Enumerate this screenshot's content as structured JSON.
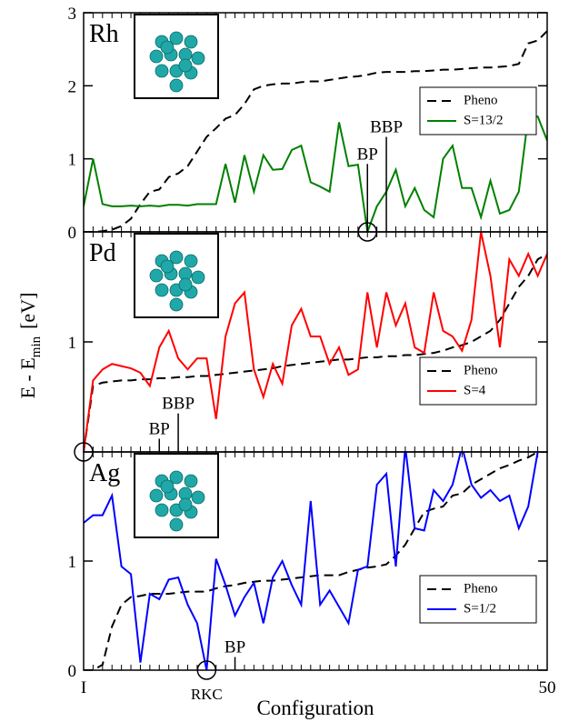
{
  "xlabel": "Configuration",
  "ylabel": {
    "main": "E - E",
    "sub": "min",
    "unit": "[eV]"
  },
  "x": [
    1,
    2,
    3,
    4,
    5,
    6,
    7,
    8,
    9,
    10,
    11,
    12,
    13,
    14,
    15,
    16,
    17,
    18,
    19,
    20,
    21,
    22,
    23,
    24,
    25,
    26,
    27,
    28,
    29,
    30,
    31,
    32,
    33,
    34,
    35,
    36,
    37,
    38,
    39,
    40,
    41,
    42,
    43,
    44,
    45,
    46,
    47,
    48,
    49,
    50
  ],
  "xlim": [
    1,
    50
  ],
  "xticks": [
    {
      "value": 1,
      "label": "I"
    },
    50
  ],
  "chart_data": [
    {
      "type": "line",
      "title": "Rh",
      "ylim": [
        0,
        3
      ],
      "yticks": [
        0,
        1,
        2,
        3
      ],
      "legend": "upper right",
      "series": [
        {
          "name": "Pheno",
          "color": "#000000",
          "linestyle": "dashed",
          "values": [
            0,
            0,
            0.01,
            0.03,
            0.08,
            0.18,
            0.38,
            0.55,
            0.58,
            0.75,
            0.8,
            0.9,
            1.1,
            1.3,
            1.42,
            1.55,
            1.6,
            1.75,
            1.95,
            2.0,
            2.02,
            2.03,
            2.03,
            2.05,
            2.06,
            2.06,
            2.08,
            2.1,
            2.12,
            2.13,
            2.15,
            2.18,
            2.19,
            2.19,
            2.19,
            2.2,
            2.2,
            2.21,
            2.22,
            2.22,
            2.23,
            2.24,
            2.25,
            2.25,
            2.26,
            2.27,
            2.3,
            2.58,
            2.62,
            2.75
          ]
        },
        {
          "name": "S=13/2",
          "color": "#008000",
          "linestyle": "solid",
          "values": [
            0.35,
            1.0,
            0.38,
            0.35,
            0.35,
            0.36,
            0.35,
            0.36,
            0.35,
            0.37,
            0.37,
            0.36,
            0.38,
            0.38,
            0.38,
            0.93,
            0.4,
            1.05,
            0.55,
            1.05,
            0.85,
            0.86,
            1.12,
            1.18,
            0.68,
            0.62,
            0.55,
            1.5,
            0.9,
            0.92,
            0,
            0.35,
            0.55,
            0.85,
            0.35,
            0.6,
            0.3,
            0.2,
            1.0,
            1.18,
            0.6,
            0.6,
            0.2,
            0.7,
            0.25,
            0.3,
            0.55,
            1.58,
            1.58,
            1.25
          ]
        }
      ],
      "annotations": [
        {
          "text": "BP",
          "x": 31,
          "y": 0.93
        },
        {
          "text": "BBP",
          "x": 33,
          "y": 1.3
        }
      ],
      "highlight": {
        "x": 31,
        "y": 0
      }
    },
    {
      "type": "line",
      "title": "Pd",
      "ylim": [
        0,
        2
      ],
      "yticks": [
        1
      ],
      "legend": "lower right",
      "series": [
        {
          "name": "Pheno",
          "color": "#000000",
          "linestyle": "dashed",
          "values": [
            0,
            0.6,
            0.63,
            0.64,
            0.65,
            0.65,
            0.66,
            0.66,
            0.67,
            0.67,
            0.68,
            0.68,
            0.69,
            0.69,
            0.7,
            0.71,
            0.72,
            0.73,
            0.74,
            0.75,
            0.76,
            0.78,
            0.79,
            0.8,
            0.81,
            0.82,
            0.83,
            0.84,
            0.84,
            0.85,
            0.86,
            0.86,
            0.87,
            0.87,
            0.88,
            0.88,
            0.89,
            0.9,
            0.92,
            0.95,
            0.97,
            1.0,
            1.05,
            1.1,
            1.2,
            1.35,
            1.5,
            1.6,
            1.75,
            1.8
          ]
        },
        {
          "name": "S=4",
          "color": "#ff0000",
          "linestyle": "solid",
          "values": [
            0,
            0.65,
            0.75,
            0.8,
            0.78,
            0.76,
            0.72,
            0.6,
            0.95,
            1.1,
            0.85,
            0.75,
            0.85,
            0.85,
            0.3,
            1.05,
            1.35,
            1.45,
            0.75,
            0.5,
            0.8,
            0.62,
            1.15,
            1.3,
            1.05,
            1.05,
            0.8,
            0.95,
            0.7,
            0.75,
            1.45,
            0.95,
            1.45,
            1.15,
            1.35,
            0.95,
            0.9,
            1.45,
            1.1,
            1.05,
            0.92,
            1.2,
            2.0,
            1.6,
            0.95,
            1.75,
            1.6,
            1.8,
            1.6,
            1.8
          ]
        }
      ],
      "annotations": [
        {
          "text": "BP",
          "x": 9,
          "y": 0.12
        },
        {
          "text": "BBP",
          "x": 11,
          "y": 0.35
        }
      ],
      "highlight": {
        "x": 1,
        "y": 0
      }
    },
    {
      "type": "line",
      "title": "Ag",
      "ylim": [
        0,
        2
      ],
      "yticks": [
        0,
        1
      ],
      "legend": "lower right",
      "series": [
        {
          "name": "Pheno",
          "color": "#000000",
          "linestyle": "dashed",
          "values": [
            0,
            0,
            0.05,
            0.4,
            0.6,
            0.67,
            0.68,
            0.7,
            0.7,
            0.7,
            0.71,
            0.72,
            0.72,
            0.72,
            0.75,
            0.77,
            0.78,
            0.8,
            0.81,
            0.82,
            0.82,
            0.83,
            0.84,
            0.85,
            0.86,
            0.87,
            0.87,
            0.87,
            0.9,
            0.92,
            0.94,
            0.95,
            0.97,
            1.05,
            1.15,
            1.3,
            1.45,
            1.48,
            1.5,
            1.6,
            1.62,
            1.7,
            1.75,
            1.8,
            1.85,
            1.88,
            1.92,
            1.95,
            2.0,
            2.0
          ]
        },
        {
          "name": "S=1/2",
          "color": "#0000ff",
          "linestyle": "solid",
          "values": [
            1.35,
            1.42,
            1.42,
            1.6,
            0.95,
            0.88,
            0.07,
            0.7,
            0.65,
            0.83,
            0.85,
            0.6,
            0.43,
            0,
            1.02,
            0.78,
            0.5,
            0.67,
            0.8,
            0.43,
            0.85,
            1.0,
            0.78,
            0.6,
            1.55,
            0.6,
            0.73,
            0.58,
            0.43,
            0.92,
            0.95,
            1.7,
            1.8,
            0.95,
            2.05,
            1.3,
            1.28,
            1.65,
            1.55,
            1.7,
            2.05,
            1.7,
            1.58,
            1.65,
            1.55,
            1.6,
            1.3,
            1.5,
            2.0,
            2.05
          ]
        }
      ],
      "annotations": [
        {
          "text": "BP",
          "x": 17,
          "y": 0.12
        }
      ],
      "highlight": {
        "x": 14,
        "y": 0,
        "label": "RKC"
      }
    }
  ]
}
